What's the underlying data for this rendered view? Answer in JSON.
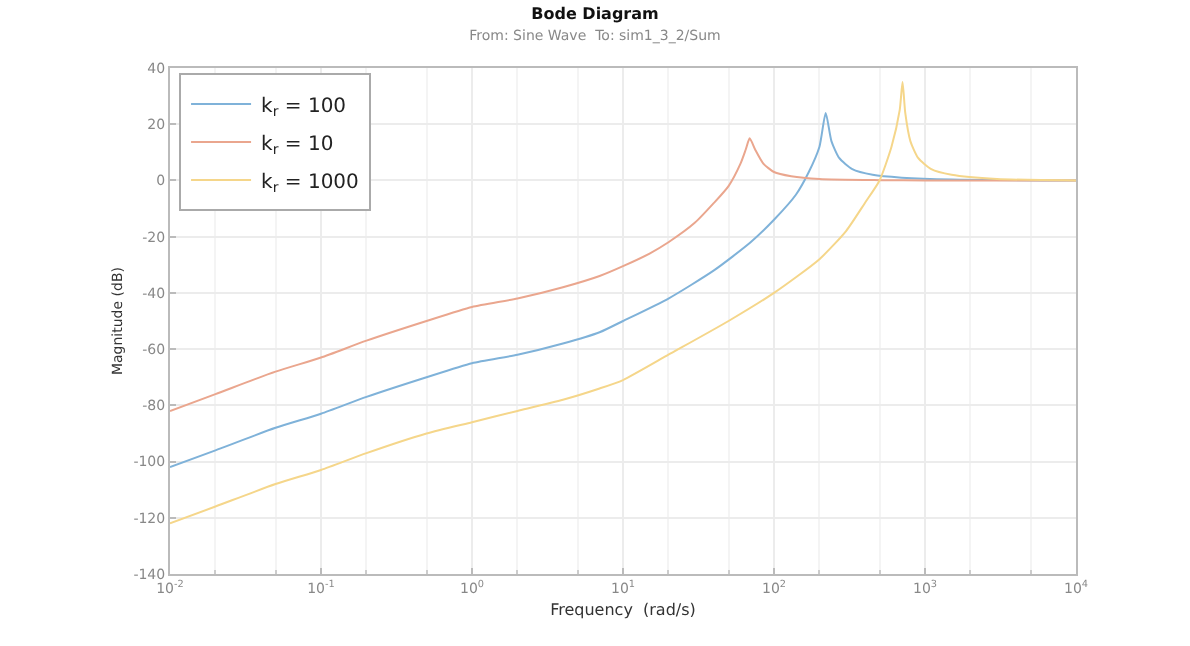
{
  "chart_data": {
    "type": "line",
    "title": "Bode Diagram",
    "subtitle": "From: Sine Wave  To: sim1_3_2/Sum",
    "xlabel": "Frequency  (rad/s)",
    "ylabel": "Magnitude (dB)",
    "log": "x",
    "grid": true,
    "legend": "top left",
    "marker": "none",
    "line_style": "solid",
    "xlim": [
      0.01,
      10000
    ],
    "xticks": [
      {
        "value": 0.01,
        "label": "10$^{-2}$"
      },
      {
        "value": 0.1,
        "label": "10$^{-1}$"
      },
      {
        "value": 1,
        "label": "10$^{0}$"
      },
      {
        "value": 10,
        "label": "10$^{1}$"
      },
      {
        "value": 100,
        "label": "10$^{2}$"
      },
      {
        "value": 1000,
        "label": "10$^{3}$"
      },
      {
        "value": 10000,
        "label": "10$^{4}$"
      }
    ],
    "ylim": [
      -140,
      40
    ],
    "yticks": [
      -140,
      -120,
      -100,
      -80,
      -60,
      -40,
      -20,
      0,
      20,
      40
    ],
    "series": [
      {
        "name": "k$_{r}$ = 100",
        "color": "#7fb2d9",
        "x": [
          0.01,
          0.02,
          0.05,
          0.1,
          0.2,
          0.5,
          1,
          2,
          4,
          7,
          10,
          20,
          40,
          70,
          100,
          140,
          170,
          200,
          220,
          240,
          270,
          330,
          450,
          700,
          1500,
          10000
        ],
        "values": [
          -102,
          -96,
          -88,
          -83,
          -77,
          -70,
          -65,
          -62,
          -58,
          -54,
          -50,
          -42,
          -32,
          -22,
          -14,
          -5,
          3,
          12,
          24,
          14,
          8,
          4,
          2,
          1,
          0.3,
          0
        ]
      },
      {
        "name": "k$_{r}$ = 10",
        "color": "#eaa68e",
        "x": [
          0.01,
          0.02,
          0.05,
          0.1,
          0.2,
          0.5,
          1,
          2,
          4,
          7,
          10,
          15,
          20,
          30,
          40,
          50,
          60,
          65,
          69,
          75,
          85,
          100,
          130,
          200,
          500,
          1000,
          10000
        ],
        "values": [
          -82,
          -76,
          -68,
          -63,
          -57,
          -50,
          -45,
          -42,
          -38,
          -34,
          -30.5,
          -26,
          -22,
          -15,
          -8,
          -2,
          6,
          11,
          15,
          11,
          6,
          3,
          1.5,
          0.5,
          0.1,
          0,
          0
        ]
      },
      {
        "name": "k$_{r}$ = 1000",
        "color": "#f5d68a",
        "x": [
          0.01,
          0.02,
          0.05,
          0.1,
          0.2,
          0.5,
          1,
          2,
          4,
          7,
          10,
          20,
          50,
          100,
          200,
          300,
          400,
          500,
          600,
          680,
          710,
          740,
          800,
          900,
          1100,
          1500,
          3000,
          10000
        ],
        "values": [
          -122,
          -116,
          -108,
          -103,
          -97,
          -90,
          -86,
          -82,
          -78,
          -74,
          -71,
          -62,
          -50,
          -40,
          -28,
          -18,
          -8,
          0,
          12,
          25,
          35,
          24,
          14,
          8,
          4,
          2,
          0.5,
          0
        ]
      }
    ]
  }
}
